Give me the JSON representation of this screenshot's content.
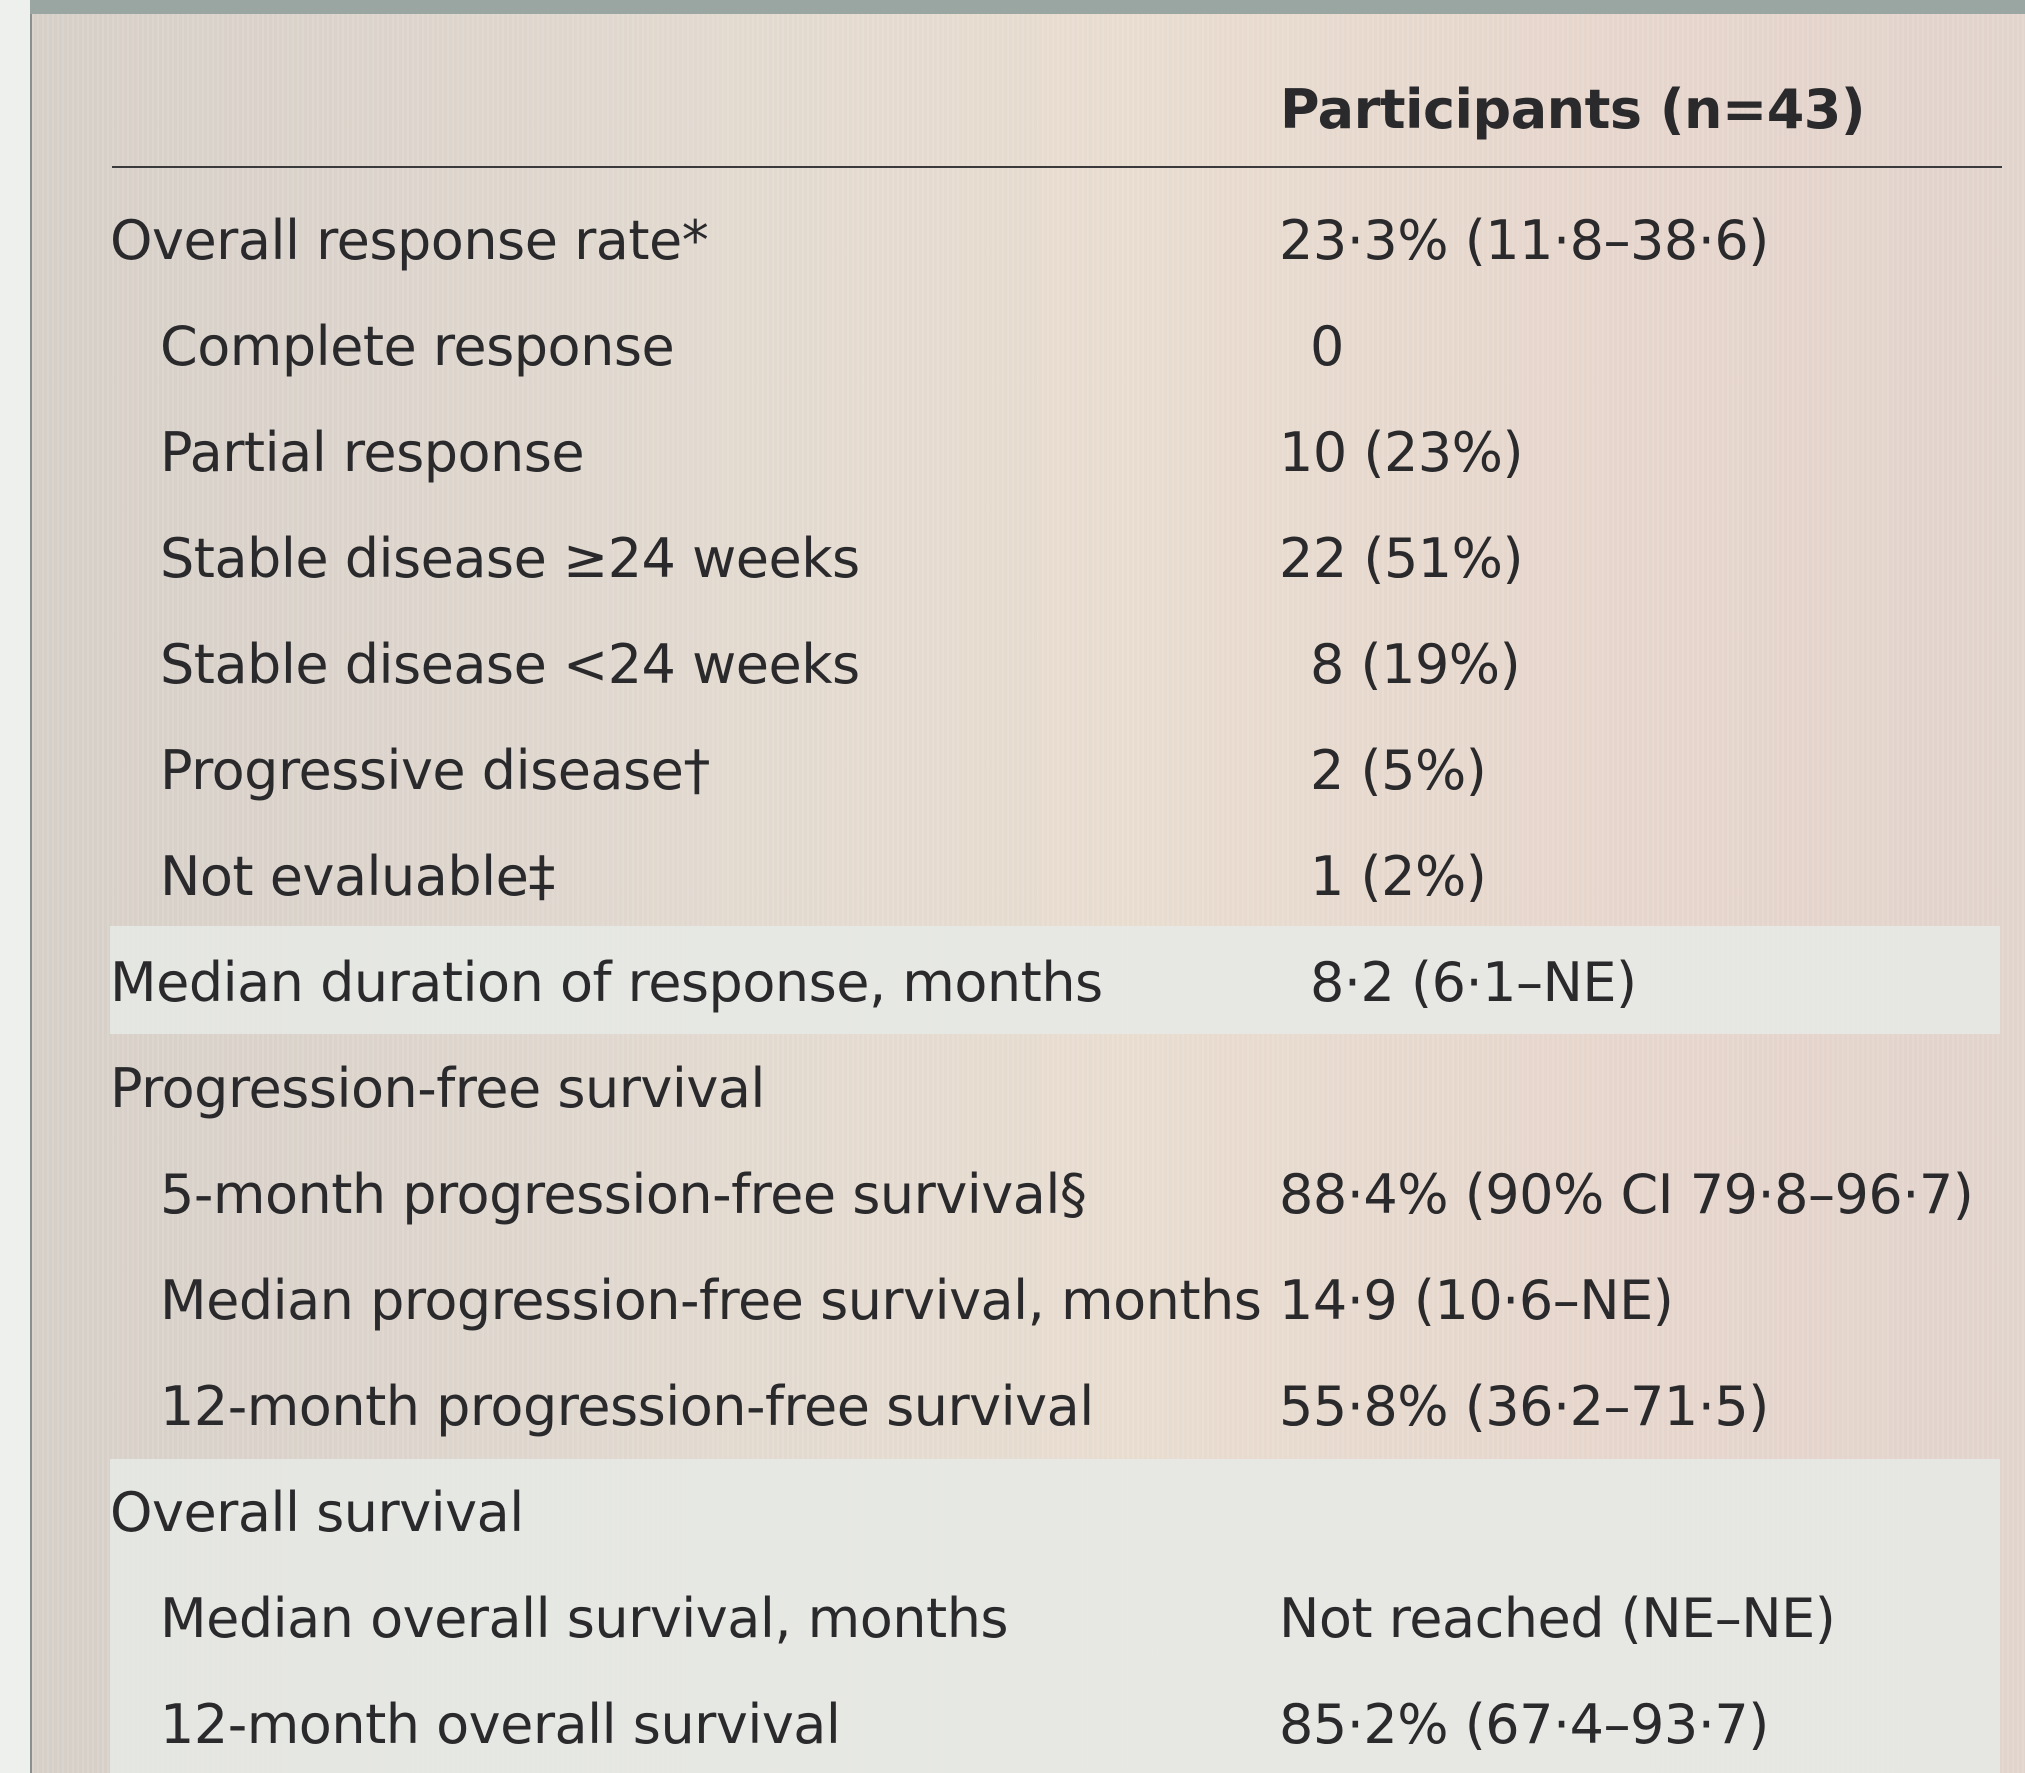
{
  "table": {
    "column_header": "Participants (n=43)",
    "rows": [
      {
        "label": "Overall response rate*",
        "value": "23·3% (11·8–38·6)"
      },
      {
        "label": "Complete response",
        "value": "0"
      },
      {
        "label": "Partial response",
        "value": "10 (23%)"
      },
      {
        "label": "Stable disease ≥24 weeks",
        "value": "22 (51%)"
      },
      {
        "label": "Stable disease <24 weeks",
        "value": "8 (19%)"
      },
      {
        "label": "Progressive disease†",
        "value": "2 (5%)"
      },
      {
        "label": "Not evaluable‡",
        "value": "1 (2%)"
      },
      {
        "label": "Median duration of response, months",
        "value": "8·2 (6·1–NE)"
      },
      {
        "label": "Progression-free survival",
        "value": ""
      },
      {
        "label": "5-month progression-free survival§",
        "value": "88·4% (90% CI 79·8–96·7)"
      },
      {
        "label": "Median progression-free survival, months",
        "value": "14·9 (10·6–NE)"
      },
      {
        "label": "12-month progression-free survival",
        "value": "55·8% (36·2–71·5)"
      },
      {
        "label": "Overall survival",
        "value": ""
      },
      {
        "label": "Median overall survival, months",
        "value": "Not reached (NE–NE)"
      },
      {
        "label": "12-month overall survival",
        "value": "85·2% (67·4–93·7)"
      }
    ]
  }
}
